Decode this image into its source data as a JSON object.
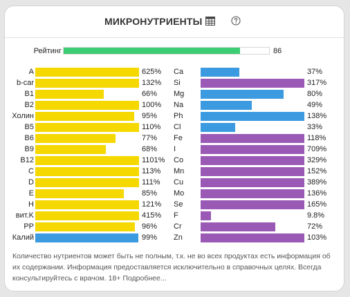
{
  "header": {
    "title": "МИКРОНУТРИЕНТЫ"
  },
  "rating": {
    "label": "Рейтинг",
    "value": "86",
    "fraction": 0.86
  },
  "colors": {
    "vitamin": "#f5d800",
    "blue": "#3b9ae0",
    "purple": "#9b59b6",
    "green": "#3dce74"
  },
  "left_items": [
    {
      "label": "A",
      "value": "625%",
      "fill": 1.0,
      "color": "vitamin"
    },
    {
      "label": "b-car",
      "value": "132%",
      "fill": 1.0,
      "color": "vitamin"
    },
    {
      "label": "B1",
      "value": "66%",
      "fill": 0.66,
      "color": "vitamin"
    },
    {
      "label": "B2",
      "value": "100%",
      "fill": 1.0,
      "color": "vitamin"
    },
    {
      "label": "Холин",
      "value": "95%",
      "fill": 0.95,
      "color": "vitamin"
    },
    {
      "label": "B5",
      "value": "110%",
      "fill": 1.0,
      "color": "vitamin"
    },
    {
      "label": "B6",
      "value": "77%",
      "fill": 0.77,
      "color": "vitamin"
    },
    {
      "label": "B9",
      "value": "68%",
      "fill": 0.68,
      "color": "vitamin"
    },
    {
      "label": "B12",
      "value": "1101%",
      "fill": 1.0,
      "color": "vitamin"
    },
    {
      "label": "C",
      "value": "113%",
      "fill": 1.0,
      "color": "vitamin"
    },
    {
      "label": "D",
      "value": "111%",
      "fill": 1.0,
      "color": "vitamin"
    },
    {
      "label": "E",
      "value": "85%",
      "fill": 0.85,
      "color": "vitamin"
    },
    {
      "label": "H",
      "value": "121%",
      "fill": 1.0,
      "color": "vitamin"
    },
    {
      "label": "вит.K",
      "value": "415%",
      "fill": 1.0,
      "color": "vitamin"
    },
    {
      "label": "PP",
      "value": "96%",
      "fill": 0.96,
      "color": "vitamin"
    },
    {
      "label": "Калий",
      "value": "99%",
      "fill": 0.99,
      "color": "blue"
    }
  ],
  "right_items": [
    {
      "label": "Ca",
      "value": "37%",
      "fill": 0.37,
      "color": "blue"
    },
    {
      "label": "Si",
      "value": "317%",
      "fill": 1.0,
      "color": "purple"
    },
    {
      "label": "Mg",
      "value": "80%",
      "fill": 0.8,
      "color": "blue"
    },
    {
      "label": "Na",
      "value": "49%",
      "fill": 0.49,
      "color": "blue"
    },
    {
      "label": "Ph",
      "value": "138%",
      "fill": 1.0,
      "color": "blue"
    },
    {
      "label": "Cl",
      "value": "33%",
      "fill": 0.33,
      "color": "blue"
    },
    {
      "label": "Fe",
      "value": "118%",
      "fill": 1.0,
      "color": "purple"
    },
    {
      "label": "I",
      "value": "709%",
      "fill": 1.0,
      "color": "purple"
    },
    {
      "label": "Co",
      "value": "329%",
      "fill": 1.0,
      "color": "purple"
    },
    {
      "label": "Mn",
      "value": "152%",
      "fill": 1.0,
      "color": "purple"
    },
    {
      "label": "Cu",
      "value": "389%",
      "fill": 1.0,
      "color": "purple"
    },
    {
      "label": "Mo",
      "value": "136%",
      "fill": 1.0,
      "color": "purple"
    },
    {
      "label": "Se",
      "value": "165%",
      "fill": 1.0,
      "color": "purple"
    },
    {
      "label": "F",
      "value": "9.8%",
      "fill": 0.098,
      "color": "purple"
    },
    {
      "label": "Cr",
      "value": "72%",
      "fill": 0.72,
      "color": "purple"
    },
    {
      "label": "Zn",
      "value": "103%",
      "fill": 1.0,
      "color": "purple"
    }
  ],
  "note": {
    "text": "Количество нутриентов может быть не полным, т.к. не во всех продуктах есть информация об их содержании. Информация предоставляется исключительно в справочных целях. Всегда консультируйтесь с врачом. 18+ Подробнее..."
  }
}
